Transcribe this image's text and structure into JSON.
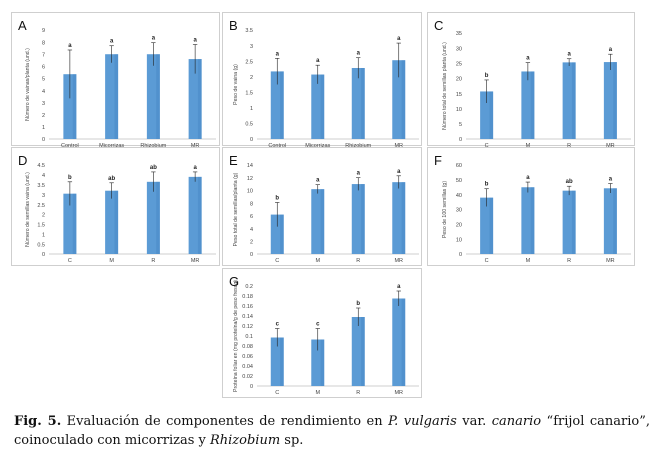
{
  "figure": {
    "caption": {
      "fig": "Fig. 5.",
      "t1": " Evaluación de componentes de rendimiento en ",
      "species": "P. vulgaris",
      "t2": " var. ",
      "variety": "canario",
      "t3": " “frijol canario”, coinoculado con micorrizas y ",
      "rhizobium": "Rhizobium",
      "t4": " sp."
    }
  },
  "colors": {
    "bar": "#5b9bd5",
    "bar_dark": "#3e7fc1",
    "axis": "#bfbfbf",
    "text": "#444444"
  },
  "chart_data": [
    {
      "panel": "A",
      "type": "bar",
      "categories": [
        "Control",
        "Micorrizas",
        "Rhizobium",
        "MR"
      ],
      "values": [
        5.35,
        7.0,
        7.0,
        6.6
      ],
      "errors": [
        2.0,
        0.7,
        0.95,
        1.2
      ],
      "letters": [
        "a",
        "a",
        "a",
        "a"
      ],
      "ylabel": "Número de vainas/planta (und.)",
      "ylim": [
        0,
        9
      ],
      "yticks": [
        0,
        1,
        2,
        3,
        4,
        5,
        6,
        7,
        8,
        9
      ]
    },
    {
      "panel": "B",
      "type": "bar",
      "categories": [
        "Control",
        "Micorrizas",
        "Rhizobium",
        "MR"
      ],
      "values": [
        2.17,
        2.07,
        2.28,
        2.53
      ],
      "errors": [
        0.42,
        0.3,
        0.33,
        0.55
      ],
      "letters": [
        "a",
        "a",
        "a",
        "a"
      ],
      "ylabel": "Peso de vaina (g)",
      "ylim": [
        0,
        3.5
      ],
      "yticks": [
        0,
        0.5,
        1,
        1.5,
        2,
        2.5,
        3,
        3.5
      ]
    },
    {
      "panel": "C",
      "type": "bar",
      "categories": [
        "C",
        "M",
        "R",
        "MR"
      ],
      "values": [
        15.7,
        22.3,
        25.3,
        25.4
      ],
      "errors": [
        3.8,
        2.9,
        1.2,
        2.6
      ],
      "letters": [
        "b",
        "a",
        "a",
        "a"
      ],
      "ylabel": "Número total de semillas planta (und.)",
      "ylim": [
        0,
        35
      ],
      "yticks": [
        0,
        5,
        10,
        15,
        20,
        25,
        30,
        35
      ]
    },
    {
      "panel": "D",
      "type": "bar",
      "categories": [
        "C",
        "M",
        "R",
        "MR"
      ],
      "values": [
        3.05,
        3.2,
        3.65,
        3.9
      ],
      "errors": [
        0.6,
        0.4,
        0.5,
        0.25
      ],
      "letters": [
        "b",
        "ab",
        "ab",
        "a"
      ],
      "ylabel": "Número de semillas vaina (und.)",
      "ylim": [
        0,
        4.5
      ],
      "yticks": [
        0,
        0.5,
        1,
        1.5,
        2,
        2.5,
        3,
        3.5,
        4,
        4.5
      ]
    },
    {
      "panel": "E",
      "type": "bar",
      "categories": [
        "C",
        "M",
        "R",
        "MR"
      ],
      "values": [
        6.2,
        10.2,
        11.0,
        11.3
      ],
      "errors": [
        1.9,
        0.7,
        1.0,
        1.0
      ],
      "letters": [
        "b",
        "a",
        "a",
        "a"
      ],
      "ylabel": "Peso total de semillas/planta (g)",
      "ylim": [
        0,
        14
      ],
      "yticks": [
        0,
        2,
        4,
        6,
        8,
        10,
        12,
        14
      ]
    },
    {
      "panel": "F",
      "type": "bar",
      "categories": [
        "C",
        "M",
        "R",
        "MR"
      ],
      "values": [
        38.0,
        45.0,
        42.7,
        44.3
      ],
      "errors": [
        6.0,
        3.5,
        3.0,
        3.2
      ],
      "letters": [
        "b",
        "a",
        "ab",
        "a"
      ],
      "ylabel": "Peso de 100 semillas (g)",
      "ylim": [
        0,
        60
      ],
      "yticks": [
        0,
        10,
        20,
        30,
        40,
        50,
        60
      ]
    },
    {
      "panel": "G",
      "type": "bar",
      "categories": [
        "C",
        "M",
        "R",
        "MR"
      ],
      "values": [
        0.097,
        0.093,
        0.138,
        0.175
      ],
      "errors": [
        0.018,
        0.022,
        0.018,
        0.015
      ],
      "letters": [
        "c",
        "c",
        "b",
        "a"
      ],
      "ylabel": "Proteína foliar en (mg proteína/g de peso fresco)",
      "ylim": [
        0,
        0.2
      ],
      "yticks": [
        0,
        0.02,
        0.04,
        0.06,
        0.08,
        0.1,
        0.12,
        0.14,
        0.16,
        0.18,
        0.2
      ]
    }
  ]
}
